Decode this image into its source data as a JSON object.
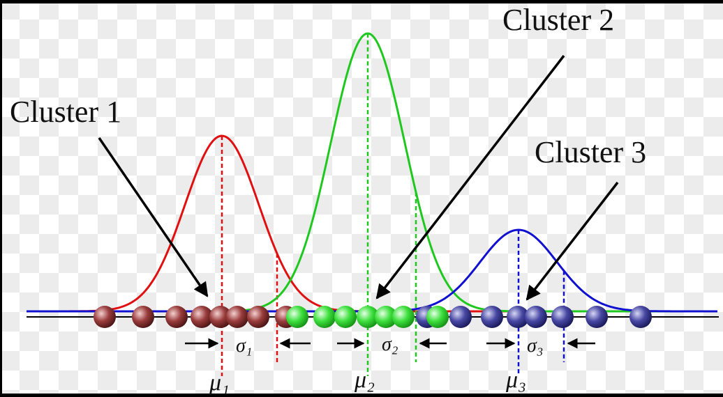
{
  "labels": {
    "cluster_1": "Cluster 1",
    "cluster_2": "Cluster 2",
    "cluster_3": "Cluster 3"
  },
  "sigmas": [
    "σ₁",
    "σ₂",
    "σ₃"
  ],
  "mus": [
    "μ₁",
    "μ₂",
    "μ₃"
  ]
}
